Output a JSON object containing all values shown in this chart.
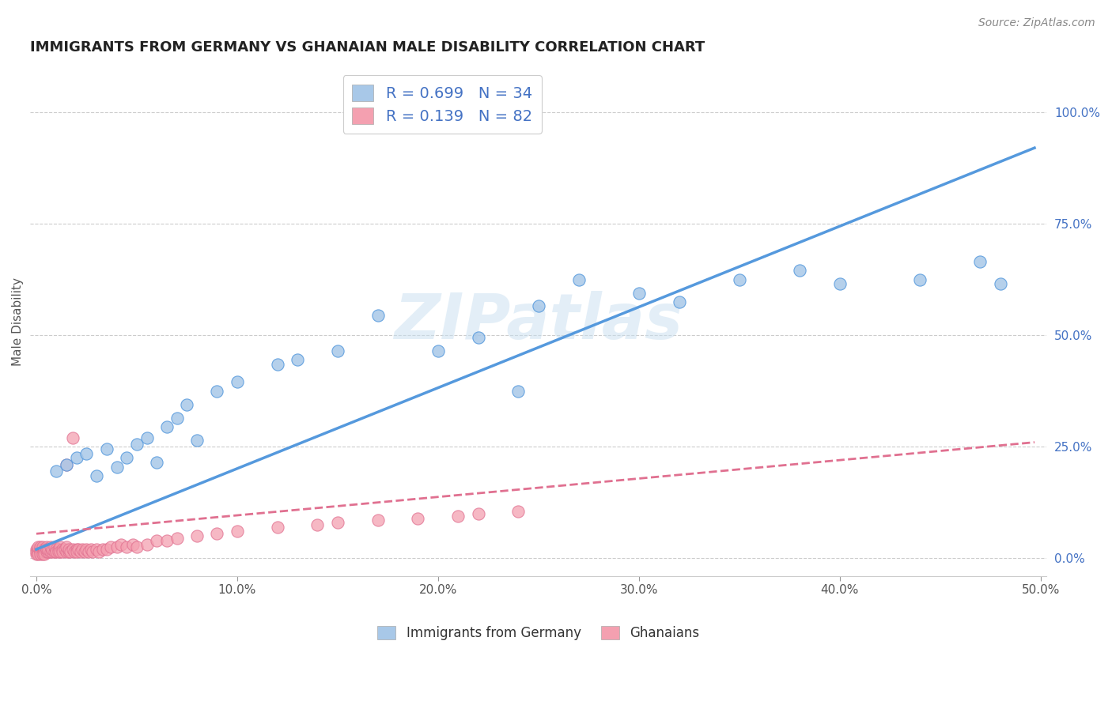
{
  "title": "IMMIGRANTS FROM GERMANY VS GHANAIAN MALE DISABILITY CORRELATION CHART",
  "source": "Source: ZipAtlas.com",
  "ylabel": "Male Disability",
  "legend_label_blue": "Immigrants from Germany",
  "legend_label_pink": "Ghanaians",
  "R_blue": 0.699,
  "N_blue": 34,
  "R_pink": 0.139,
  "N_pink": 82,
  "xlim": [
    -0.003,
    0.503
  ],
  "ylim": [
    -0.04,
    1.1
  ],
  "xticks": [
    0.0,
    0.1,
    0.2,
    0.3,
    0.4,
    0.5
  ],
  "yticks_right": [
    0.0,
    0.25,
    0.5,
    0.75,
    1.0
  ],
  "color_blue": "#a8c8e8",
  "color_blue_line": "#5599dd",
  "color_pink": "#f4a0b0",
  "color_pink_line": "#e07090",
  "color_blue_text": "#4472c4",
  "watermark": "ZIPatlas",
  "blue_scatter_x": [
    0.01,
    0.015,
    0.02,
    0.025,
    0.03,
    0.035,
    0.04,
    0.045,
    0.05,
    0.055,
    0.06,
    0.065,
    0.07,
    0.075,
    0.08,
    0.09,
    0.1,
    0.12,
    0.13,
    0.15,
    0.17,
    0.2,
    0.22,
    0.25,
    0.27,
    0.3,
    0.32,
    0.35,
    0.38,
    0.4,
    0.44,
    0.47,
    0.48,
    0.24
  ],
  "blue_scatter_y": [
    0.195,
    0.21,
    0.225,
    0.235,
    0.185,
    0.245,
    0.205,
    0.225,
    0.255,
    0.27,
    0.215,
    0.295,
    0.315,
    0.345,
    0.265,
    0.375,
    0.395,
    0.435,
    0.445,
    0.465,
    0.545,
    0.465,
    0.495,
    0.565,
    0.625,
    0.595,
    0.575,
    0.625,
    0.645,
    0.615,
    0.625,
    0.665,
    0.615,
    0.375
  ],
  "blue_line_x0": 0.0,
  "blue_line_y0": 0.02,
  "blue_line_x1": 0.497,
  "blue_line_y1": 0.92,
  "pink_line_x0": 0.0,
  "pink_line_y0": 0.055,
  "pink_line_x1": 0.497,
  "pink_line_y1": 0.26,
  "pink_scatter_x": [
    0.0,
    0.0,
    0.0,
    0.001,
    0.001,
    0.001,
    0.001,
    0.002,
    0.002,
    0.002,
    0.002,
    0.003,
    0.003,
    0.003,
    0.003,
    0.004,
    0.004,
    0.004,
    0.005,
    0.005,
    0.005,
    0.006,
    0.006,
    0.007,
    0.007,
    0.008,
    0.008,
    0.009,
    0.009,
    0.01,
    0.01,
    0.011,
    0.011,
    0.012,
    0.012,
    0.013,
    0.013,
    0.014,
    0.015,
    0.015,
    0.016,
    0.016,
    0.017,
    0.018,
    0.019,
    0.02,
    0.02,
    0.021,
    0.022,
    0.023,
    0.024,
    0.025,
    0.026,
    0.027,
    0.028,
    0.03,
    0.031,
    0.033,
    0.035,
    0.037,
    0.04,
    0.042,
    0.045,
    0.048,
    0.05,
    0.055,
    0.06,
    0.065,
    0.07,
    0.08,
    0.09,
    0.1,
    0.12,
    0.14,
    0.15,
    0.17,
    0.19,
    0.21,
    0.22,
    0.24,
    0.015,
    0.018
  ],
  "pink_scatter_y": [
    0.02,
    0.01,
    0.015,
    0.02,
    0.015,
    0.01,
    0.025,
    0.02,
    0.015,
    0.025,
    0.01,
    0.02,
    0.015,
    0.025,
    0.01,
    0.02,
    0.015,
    0.01,
    0.025,
    0.015,
    0.02,
    0.015,
    0.02,
    0.015,
    0.025,
    0.015,
    0.02,
    0.015,
    0.025,
    0.02,
    0.015,
    0.02,
    0.015,
    0.025,
    0.015,
    0.02,
    0.015,
    0.02,
    0.015,
    0.025,
    0.015,
    0.02,
    0.015,
    0.02,
    0.015,
    0.02,
    0.015,
    0.02,
    0.015,
    0.02,
    0.015,
    0.02,
    0.015,
    0.02,
    0.015,
    0.02,
    0.015,
    0.02,
    0.02,
    0.025,
    0.025,
    0.03,
    0.025,
    0.03,
    0.025,
    0.03,
    0.04,
    0.04,
    0.045,
    0.05,
    0.055,
    0.06,
    0.07,
    0.075,
    0.08,
    0.085,
    0.09,
    0.095,
    0.1,
    0.105,
    0.21,
    0.27
  ]
}
